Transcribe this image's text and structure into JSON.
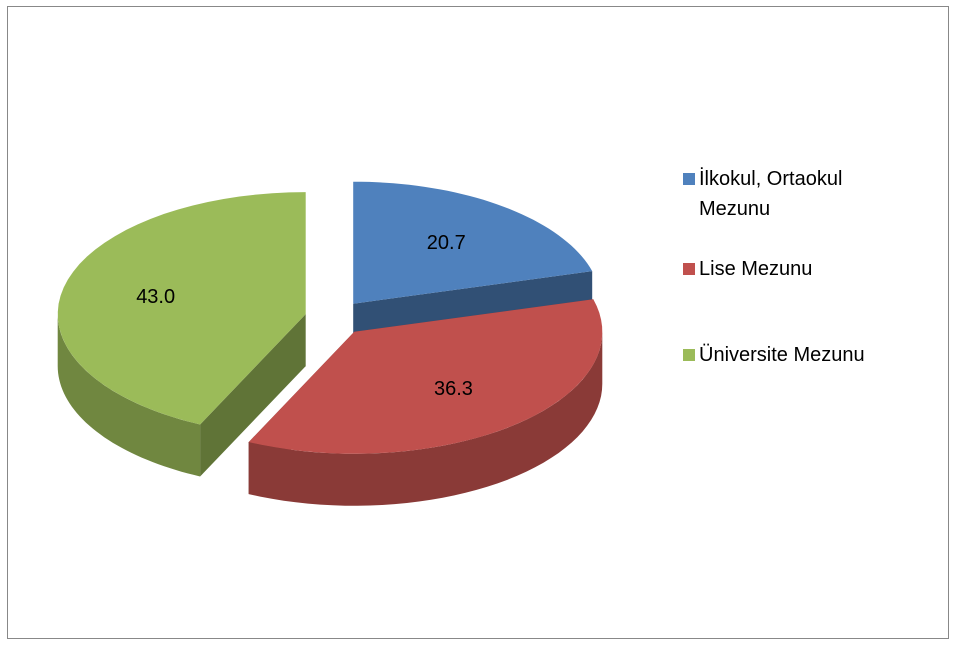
{
  "chart_data": {
    "type": "pie3d",
    "categories": [
      "İlkokul, Ortaokul Mezunu",
      "Lise Mezunu",
      "Üniversite Mezunu"
    ],
    "values": [
      20.7,
      36.3,
      43.0
    ],
    "value_labels": [
      "20.7",
      "36.3",
      "43.0"
    ],
    "colors": [
      "#4f81bd",
      "#c0504d",
      "#9bbb59"
    ],
    "legend": "right"
  }
}
